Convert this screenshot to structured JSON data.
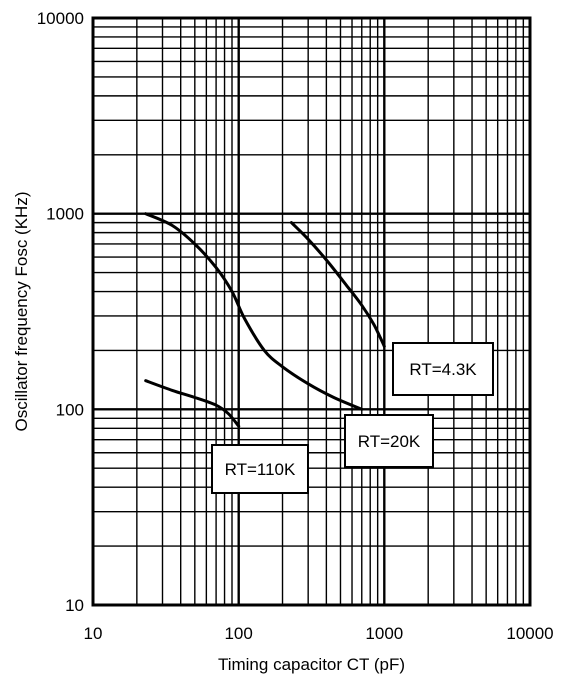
{
  "chart_data": {
    "type": "line",
    "xlabel": "Timing capacitor CT (pF)",
    "ylabel": "Oscillator frequency Fosc (KHz)",
    "xscale": "log",
    "yscale": "log",
    "xlim": [
      10,
      10000
    ],
    "ylim": [
      10,
      10000
    ],
    "grid": true,
    "x_ticks": [
      {
        "value": 10,
        "label": "10"
      },
      {
        "value": 100,
        "label": "100"
      },
      {
        "value": 1000,
        "label": "1000"
      },
      {
        "value": 10000,
        "label": "10000"
      }
    ],
    "y_ticks": [
      {
        "value": 10,
        "label": "10"
      },
      {
        "value": 100,
        "label": "100"
      },
      {
        "value": 1000,
        "label": "1000"
      },
      {
        "value": 10000,
        "label": "10000"
      }
    ],
    "series": [
      {
        "name": "RT=110K",
        "points": [
          [
            23,
            140
          ],
          [
            35,
            125
          ],
          [
            50,
            115
          ],
          [
            70,
            105
          ],
          [
            85,
            95
          ],
          [
            100,
            82
          ]
        ]
      },
      {
        "name": "RT=20K",
        "points": [
          [
            23,
            1000
          ],
          [
            35,
            870
          ],
          [
            50,
            700
          ],
          [
            70,
            530
          ],
          [
            90,
            400
          ],
          [
            110,
            290
          ],
          [
            150,
            200
          ],
          [
            200,
            165
          ],
          [
            300,
            135
          ],
          [
            450,
            115
          ],
          [
            700,
            100
          ]
        ]
      },
      {
        "name": "RT=4.3K",
        "points": [
          [
            230,
            900
          ],
          [
            300,
            740
          ],
          [
            400,
            580
          ],
          [
            550,
            430
          ],
          [
            700,
            340
          ],
          [
            850,
            270
          ],
          [
            1000,
            210
          ]
        ]
      }
    ],
    "annotations": [
      {
        "text": "RT=110K",
        "series": "RT=110K"
      },
      {
        "text": "RT=20K",
        "series": "RT=20K"
      },
      {
        "text": "RT=4.3K",
        "series": "RT=4.3K"
      }
    ]
  }
}
